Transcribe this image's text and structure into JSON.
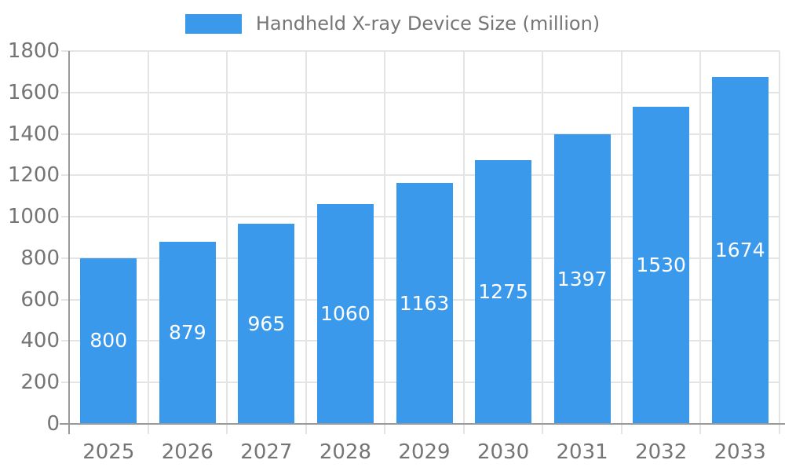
{
  "chart_data": {
    "type": "bar",
    "title": "",
    "categories": [
      "2025",
      "2026",
      "2027",
      "2028",
      "2029",
      "2030",
      "2031",
      "2032",
      "2033"
    ],
    "series": [
      {
        "name": "Handheld X-ray Device Size (million)",
        "values": [
          800,
          879,
          965,
          1060,
          1163,
          1275,
          1397,
          1530,
          1674
        ]
      }
    ],
    "legend": {
      "position": "top-center",
      "entries": [
        "Handheld X-ray Device Size (million)"
      ]
    },
    "xlabel": "",
    "ylabel": "",
    "ylim": [
      0,
      1800
    ],
    "ytick_step": 200,
    "grid": true,
    "value_labels": {
      "visible": true,
      "position": "inside-center"
    }
  },
  "colors": {
    "bar": "#3B99EC",
    "axis_text": "#757575",
    "grid_line": "#E4E4E4",
    "axis_line": "#999999",
    "value_label_text": "#FFFFFF",
    "background": "#FFFFFF"
  }
}
